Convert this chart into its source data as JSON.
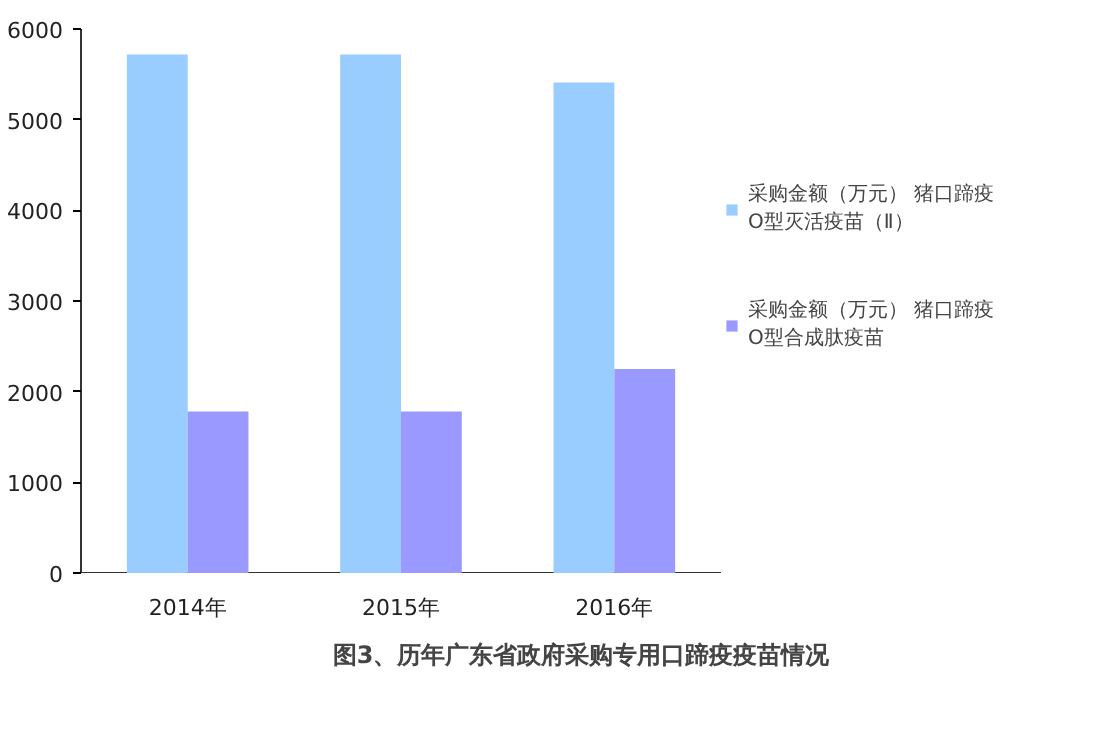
{
  "chart_data": {
    "type": "bar",
    "title": "图3、历年广东省政府采购专用口蹄疫疫苗情况",
    "categories": [
      "2014年",
      "2015年",
      "2016年"
    ],
    "series": [
      {
        "name": "采购金额（万元） 猪口蹄疫O型灭活疫苗（Ⅱ）",
        "color": "#99ccff",
        "values": [
          5720,
          5720,
          5410
        ]
      },
      {
        "name": "采购金额（万元） 猪口蹄疫O型合成肽疫苗",
        "color": "#9999ff",
        "values": [
          1780,
          1780,
          2250
        ]
      }
    ],
    "ylim": [
      0,
      6000
    ],
    "yticks": [
      0,
      1000,
      2000,
      3000,
      4000,
      5000,
      6000
    ],
    "grid": false,
    "legend": "right"
  }
}
